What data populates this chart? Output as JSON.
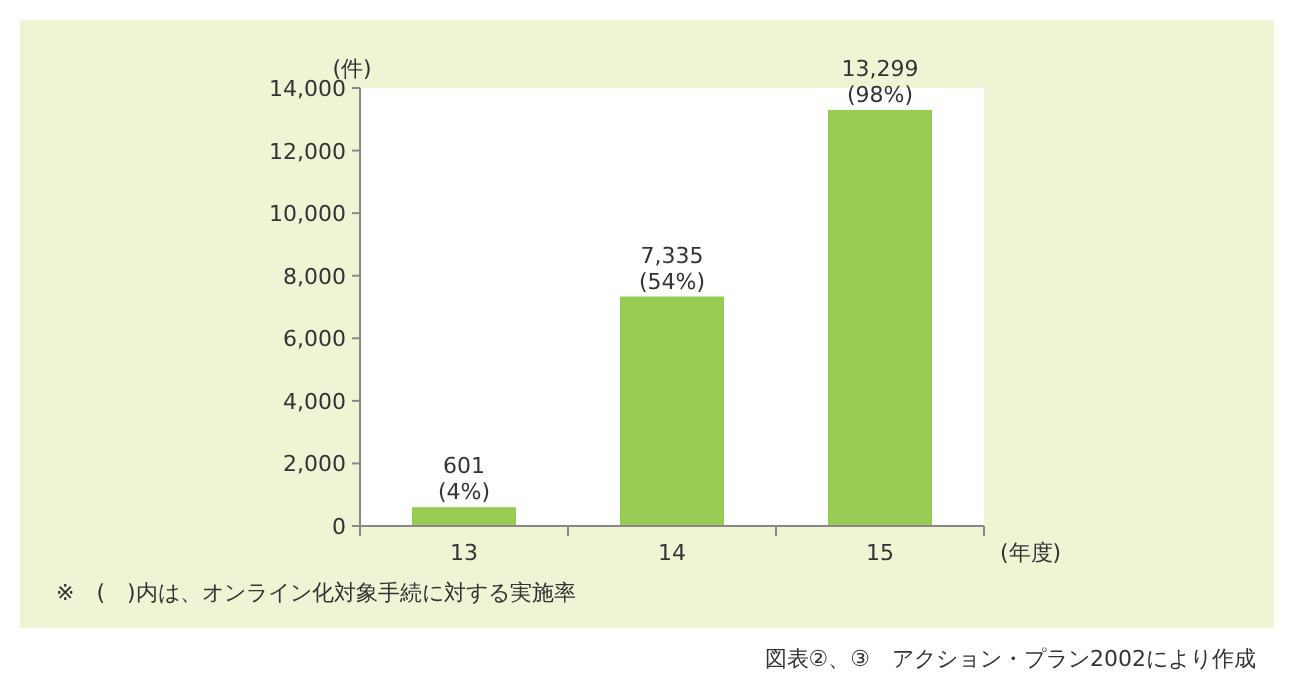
{
  "chart_data": {
    "type": "bar",
    "ylabel": "(件)",
    "xlabel": "(年度)",
    "categories": [
      "13",
      "14",
      "15"
    ],
    "values": [
      601,
      7335,
      13299
    ],
    "value_labels": [
      "601\n(4%)",
      "7,335\n(54%)",
      "13,299\n(98%)"
    ],
    "color": "#99cc55",
    "ylim": [
      0,
      14000
    ],
    "yticks": [
      {
        "value": 0,
        "label": "0"
      },
      {
        "value": 2000,
        "label": "2,000"
      },
      {
        "value": 4000,
        "label": "4,000"
      },
      {
        "value": 6000,
        "label": "6,000"
      },
      {
        "value": 8000,
        "label": "8,000"
      },
      {
        "value": 10000,
        "label": "10,000"
      },
      {
        "value": 12000,
        "label": "12,000"
      },
      {
        "value": 14000,
        "label": "14,000"
      }
    ],
    "grid": false,
    "annotations": [
      "※　(　)内は、オンライン化対象手続に対する実施率",
      "図表②、③　アクション・プラン2002により作成"
    ]
  }
}
